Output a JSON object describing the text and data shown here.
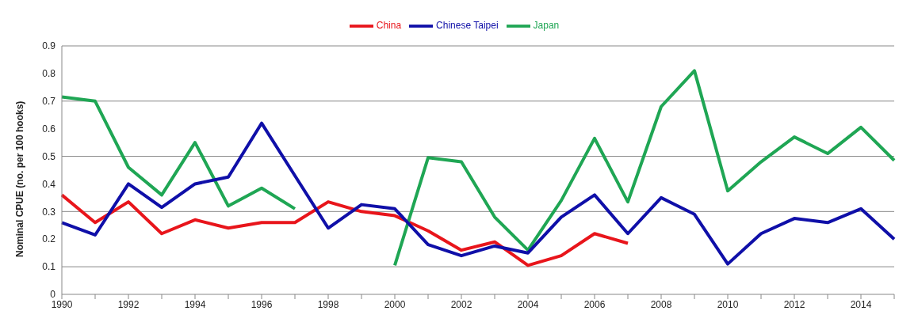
{
  "chart_data": {
    "type": "line",
    "ylabel": "Nominal CPUE (no. per 100 hooks)",
    "categories": [
      "1990",
      null,
      "1992",
      null,
      "1994",
      null,
      "1996",
      null,
      "1998",
      null,
      "2000",
      null,
      "2002",
      null,
      "2004",
      null,
      "2006",
      null,
      "2008",
      null,
      "2010",
      null,
      "2012",
      null,
      "2014",
      null
    ],
    "series": [
      {
        "name": "China",
        "color": "#e8151b",
        "values": [
          0.36,
          0.26,
          0.335,
          0.22,
          0.27,
          0.24,
          0.26,
          0.26,
          0.335,
          0.3,
          0.285,
          0.23,
          0.16,
          0.19,
          0.105,
          0.14,
          0.22,
          0.185,
          null,
          null,
          null,
          null,
          null,
          null,
          null,
          null
        ]
      },
      {
        "name": "Japan",
        "color": "#1fa654",
        "values": [
          0.715,
          0.7,
          0.46,
          0.36,
          0.55,
          0.32,
          0.385,
          0.31,
          null,
          null,
          0.105,
          0.495,
          0.48,
          0.28,
          0.16,
          0.34,
          0.565,
          0.335,
          0.68,
          0.81,
          0.375,
          0.48,
          0.57,
          0.51,
          0.605,
          0.485
        ]
      },
      {
        "name": "Chinese Taipei",
        "color": "#0f0fa8",
        "values": [
          0.26,
          0.215,
          0.4,
          0.315,
          0.4,
          0.425,
          0.62,
          0.43,
          0.24,
          0.325,
          0.31,
          0.18,
          0.14,
          0.175,
          0.15,
          0.28,
          0.36,
          0.22,
          0.35,
          0.29,
          0.11,
          0.22,
          0.275,
          0.26,
          0.31,
          0.2
        ]
      }
    ],
    "ylim": [
      0,
      0.9
    ],
    "yticks": [
      0,
      0.1,
      0.2,
      0.3,
      0.4,
      0.5,
      0.6,
      0.7,
      0.8,
      0.9
    ],
    "grid": "y",
    "legend": "top",
    "marker": "none",
    "line_style": "solid"
  }
}
